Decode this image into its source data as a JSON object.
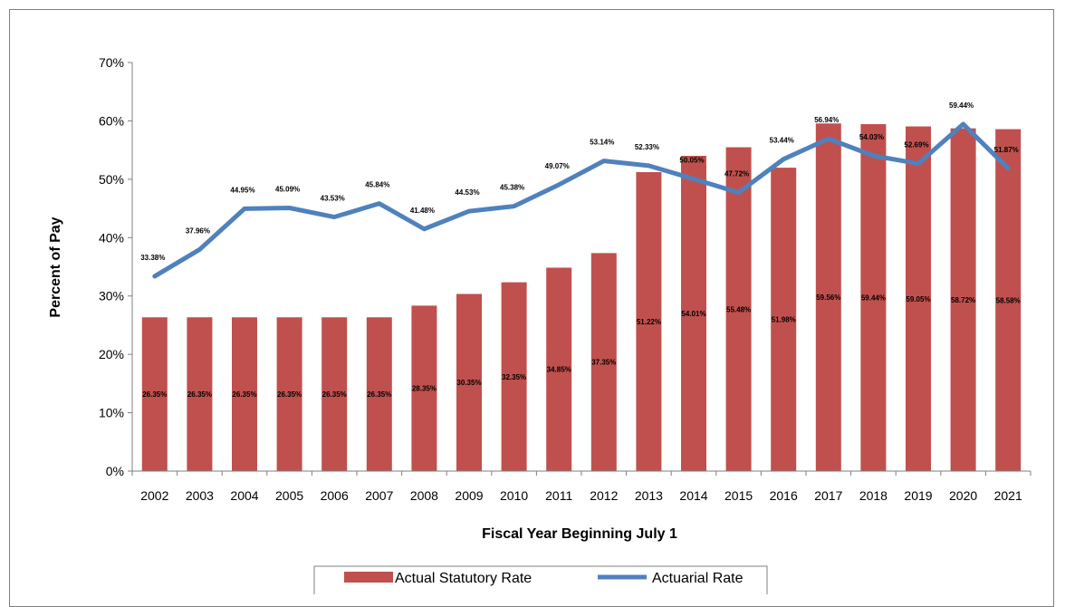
{
  "chart_data": {
    "type": "bar",
    "categories": [
      "2002",
      "2003",
      "2004",
      "2005",
      "2006",
      "2007",
      "2008",
      "2009",
      "2010",
      "2011",
      "2012",
      "2013",
      "2014",
      "2015",
      "2016",
      "2017",
      "2018",
      "2019",
      "2020",
      "2021"
    ],
    "series": [
      {
        "name": "Actual Statutory Rate",
        "type": "bar",
        "color": "#c0504d",
        "values": [
          26.35,
          26.35,
          26.35,
          26.35,
          26.35,
          26.35,
          28.35,
          30.35,
          32.35,
          34.85,
          37.35,
          51.22,
          54.01,
          55.48,
          51.98,
          59.56,
          59.44,
          59.05,
          58.72,
          58.58
        ],
        "labels": [
          "26.35%",
          "26.35%",
          "26.35%",
          "26.35%",
          "26.35%",
          "26.35%",
          "28.35%",
          "30.35%",
          "32.35%",
          "34.85%",
          "37.35%",
          "51.22%",
          "54.01%",
          "55.48%",
          "51.98%",
          "59.56%",
          "59.44%",
          "59.05%",
          "58.72%",
          "58.58%"
        ]
      },
      {
        "name": "Actuarial Rate",
        "type": "line",
        "color": "#4f81bd",
        "values": [
          33.38,
          37.96,
          44.95,
          45.09,
          43.53,
          45.84,
          41.48,
          44.53,
          45.38,
          49.07,
          53.14,
          52.33,
          50.05,
          47.72,
          53.44,
          56.94,
          54.03,
          52.69,
          59.44,
          51.87
        ],
        "labels": [
          "33.38%",
          "37.96%",
          "44.95%",
          "45.09%",
          "43.53%",
          "45.84%",
          "41.48%",
          "44.53%",
          "45.38%",
          "49.07%",
          "53.14%",
          "52.33%",
          "50.05%",
          "47.72%",
          "53.44%",
          "56.94%",
          "54.03%",
          "52.69%",
          "59.44%",
          "51.87%"
        ]
      }
    ],
    "title": "",
    "xlabel": "Fiscal Year Beginning July 1",
    "ylabel": "Percent of Pay",
    "ylim": [
      0,
      70
    ],
    "yticks": [
      "0%",
      "10%",
      "20%",
      "30%",
      "40%",
      "50%",
      "60%",
      "70%"
    ],
    "ytick_values": [
      0,
      10,
      20,
      30,
      40,
      50,
      60,
      70
    ],
    "grid": false,
    "legend": "bottom-center"
  }
}
